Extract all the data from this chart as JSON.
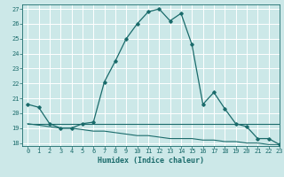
{
  "title": "",
  "xlabel": "Humidex (Indice chaleur)",
  "ylabel": "",
  "bg_color": "#cce8e8",
  "grid_color": "#ffffff",
  "line_color": "#1a6b6b",
  "xlim": [
    -0.5,
    23
  ],
  "ylim": [
    17.8,
    27.3
  ],
  "xtick_labels": [
    "0",
    "1",
    "2",
    "3",
    "4",
    "5",
    "6",
    "7",
    "8",
    "9",
    "10",
    "11",
    "12",
    "13",
    "14",
    "15",
    "16",
    "17",
    "18",
    "19",
    "20",
    "21",
    "22",
    "23"
  ],
  "xtick_pos": [
    0,
    1,
    2,
    3,
    4,
    5,
    6,
    7,
    8,
    9,
    10,
    11,
    12,
    13,
    14,
    15,
    16,
    17,
    18,
    19,
    20,
    21,
    22,
    23
  ],
  "ytick_labels": [
    "18",
    "19",
    "20",
    "21",
    "22",
    "23",
    "24",
    "25",
    "26",
    "27"
  ],
  "ytick_pos": [
    18,
    19,
    20,
    21,
    22,
    23,
    24,
    25,
    26,
    27
  ],
  "series1_x": [
    0,
    1,
    2,
    3,
    4,
    5,
    6,
    7,
    8,
    9,
    10,
    11,
    12,
    13,
    14,
    15,
    16,
    17,
    18,
    19,
    20,
    21,
    22,
    23
  ],
  "series1_y": [
    20.6,
    20.4,
    19.3,
    19.0,
    19.0,
    19.3,
    19.4,
    22.1,
    23.5,
    25.0,
    26.0,
    26.8,
    27.0,
    26.2,
    26.7,
    24.6,
    20.6,
    21.4,
    20.3,
    19.3,
    19.1,
    18.3,
    18.3,
    17.9
  ],
  "series2_x": [
    0,
    1,
    2,
    3,
    4,
    5,
    6,
    7,
    8,
    9,
    10,
    11,
    12,
    13,
    14,
    15,
    16,
    17,
    18,
    19,
    20,
    21,
    22,
    23
  ],
  "series2_y": [
    19.3,
    19.3,
    19.3,
    19.3,
    19.3,
    19.3,
    19.3,
    19.3,
    19.3,
    19.3,
    19.3,
    19.3,
    19.3,
    19.3,
    19.3,
    19.3,
    19.3,
    19.3,
    19.3,
    19.3,
    19.3,
    19.3,
    19.3,
    19.3
  ],
  "series3_x": [
    0,
    1,
    2,
    3,
    4,
    5,
    6,
    7,
    8,
    9,
    10,
    11,
    12,
    13,
    14,
    15,
    16,
    17,
    18,
    19,
    20,
    21,
    22,
    23
  ],
  "series3_y": [
    19.3,
    19.2,
    19.1,
    19.0,
    19.0,
    18.9,
    18.8,
    18.8,
    18.7,
    18.6,
    18.5,
    18.5,
    18.4,
    18.3,
    18.3,
    18.3,
    18.2,
    18.2,
    18.1,
    18.1,
    18.0,
    18.0,
    17.9,
    17.9
  ],
  "xlabel_fontsize": 6.0,
  "tick_fontsize": 5.0
}
